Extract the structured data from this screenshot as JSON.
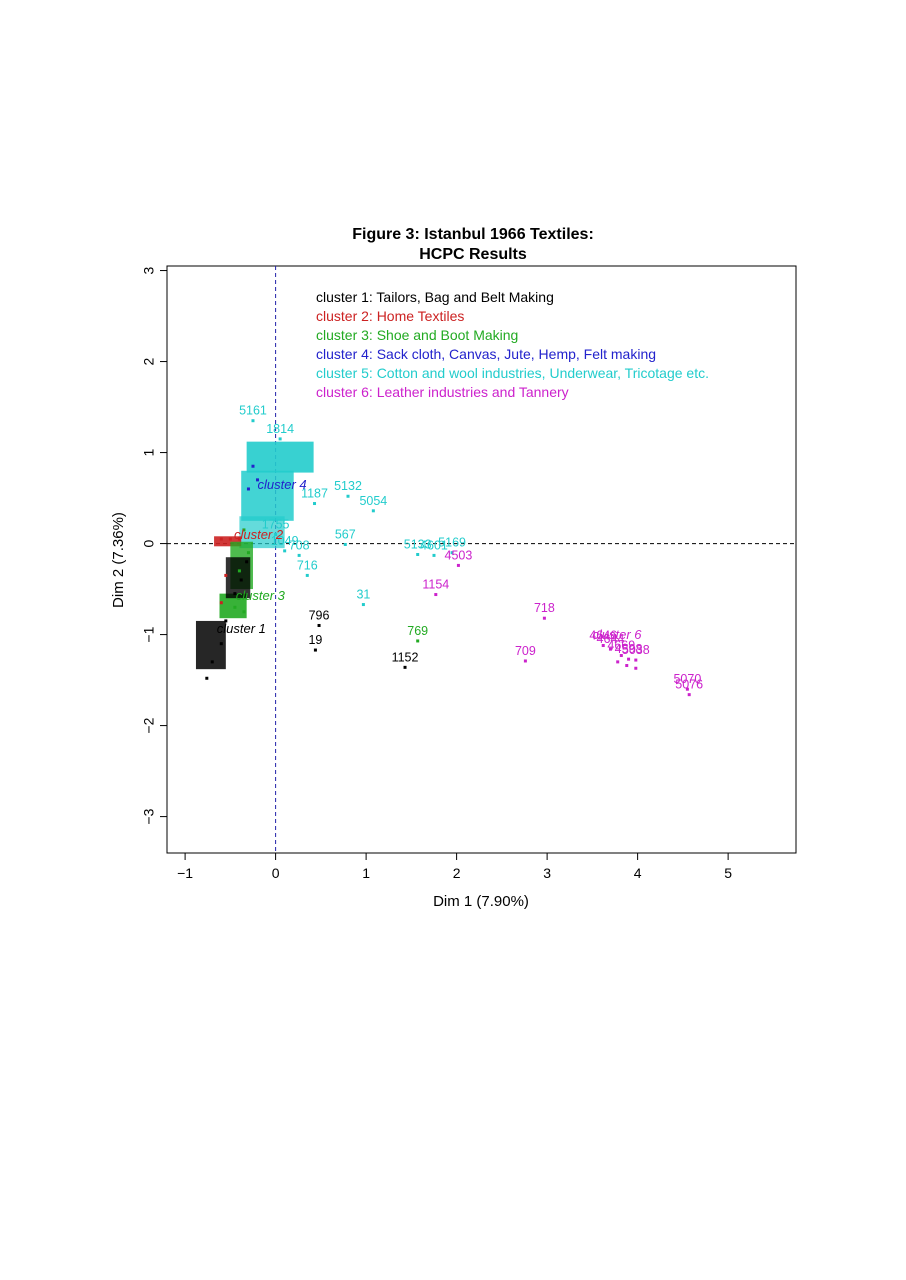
{
  "chart_data": {
    "type": "scatter",
    "title": [
      "Figure 3: Istanbul 1966 Textiles:",
      "HCPC Results"
    ],
    "xlabel": "Dim 1 (7.90%)",
    "ylabel": "Dim 2 (7.36%)",
    "xlim": [
      -1.2,
      5.75
    ],
    "ylim": [
      -3.4,
      3.05
    ],
    "xticks": [
      -1,
      0,
      1,
      2,
      3,
      4,
      5
    ],
    "yticks": [
      -3,
      -2,
      -1,
      0,
      1,
      2,
      3
    ],
    "xtick_labels": [
      "−1",
      "0",
      "1",
      "2",
      "3",
      "4",
      "5"
    ],
    "ytick_labels": [
      "−3",
      "−2",
      "−1",
      "0",
      "1",
      "2",
      "3"
    ],
    "grid": false,
    "reference_lines": {
      "x": 0,
      "y": 0
    },
    "legend_position": "top-left",
    "legend": [
      {
        "label": "cluster 1: Tailors, Bag and Belt Making",
        "color": "#000000"
      },
      {
        "label": "cluster 2: Home Textiles",
        "color": "#cc2222"
      },
      {
        "label": "cluster 3: Shoe and Boot Making",
        "color": "#22aa22"
      },
      {
        "label": "cluster 4: Sack cloth, Canvas, Jute, Hemp, Felt making",
        "color": "#2222cc"
      },
      {
        "label": "cluster 5: Cotton and wool industries, Underwear, Tricotage etc.",
        "color": "#22cccc"
      },
      {
        "label": "cluster 6: Leather industries and Tannery",
        "color": "#cc22cc"
      }
    ],
    "cluster_labels": [
      {
        "text": "cluster 1",
        "x": -0.65,
        "y": -0.98,
        "color": "#000000"
      },
      {
        "text": "cluster 2",
        "x": -0.46,
        "y": 0.05,
        "color": "#cc2222"
      },
      {
        "text": "cluster 3",
        "x": -0.44,
        "y": -0.62,
        "color": "#22aa22"
      },
      {
        "text": "cluster 4",
        "x": -0.2,
        "y": 0.6,
        "color": "#2222cc"
      },
      {
        "text": "cluster 6",
        "x": 3.5,
        "y": -1.05,
        "color": "#cc22cc"
      }
    ],
    "series": [
      {
        "cluster": 1,
        "color": "#000000",
        "points": [
          {
            "x": 0.48,
            "y": -0.9,
            "label": "796"
          },
          {
            "x": 0.44,
            "y": -1.17,
            "label": "19"
          },
          {
            "x": 1.43,
            "y": -1.36,
            "label": "1152"
          },
          {
            "x": -0.76,
            "y": -1.48,
            "label": ""
          },
          {
            "x": -0.7,
            "y": -1.3,
            "label": ""
          },
          {
            "x": -0.6,
            "y": -1.1,
            "label": ""
          },
          {
            "x": -0.55,
            "y": -0.85,
            "label": ""
          },
          {
            "x": -0.45,
            "y": -0.55,
            "label": ""
          },
          {
            "x": -0.38,
            "y": -0.4,
            "label": ""
          },
          {
            "x": -0.32,
            "y": -0.2,
            "label": ""
          }
        ]
      },
      {
        "cluster": 2,
        "color": "#cc2222",
        "points": [
          {
            "x": -0.5,
            "y": 0.05,
            "label": ""
          },
          {
            "x": -0.6,
            "y": 0.05,
            "label": ""
          },
          {
            "x": -0.4,
            "y": 0.05,
            "label": ""
          },
          {
            "x": -0.55,
            "y": -0.35,
            "label": ""
          },
          {
            "x": -0.6,
            "y": -0.65,
            "label": ""
          }
        ]
      },
      {
        "cluster": 3,
        "color": "#22aa22",
        "points": [
          {
            "x": 1.57,
            "y": -1.07,
            "label": "769"
          },
          {
            "x": -0.35,
            "y": -0.75,
            "label": ""
          },
          {
            "x": -0.45,
            "y": -0.7,
            "label": ""
          },
          {
            "x": -0.4,
            "y": -0.3,
            "label": ""
          },
          {
            "x": -0.3,
            "y": -0.1,
            "label": ""
          },
          {
            "x": -0.35,
            "y": 0.15,
            "label": ""
          }
        ]
      },
      {
        "cluster": 4,
        "color": "#2222cc",
        "points": [
          {
            "x": -0.3,
            "y": 0.6,
            "label": ""
          },
          {
            "x": -0.25,
            "y": 0.85,
            "label": ""
          },
          {
            "x": -0.2,
            "y": 0.7,
            "label": ""
          }
        ]
      },
      {
        "cluster": 5,
        "color": "#22cccc",
        "points": [
          {
            "x": -0.25,
            "y": 1.35,
            "label": "5161"
          },
          {
            "x": 0.05,
            "y": 1.15,
            "label": "1814"
          },
          {
            "x": 0.43,
            "y": 0.44,
            "label": "1187"
          },
          {
            "x": 0.8,
            "y": 0.52,
            "label": "5132"
          },
          {
            "x": 1.08,
            "y": 0.36,
            "label": "5054"
          },
          {
            "x": 0.77,
            "y": -0.01,
            "label": "567"
          },
          {
            "x": 1.57,
            "y": -0.12,
            "label": "5133"
          },
          {
            "x": 1.75,
            "y": -0.13,
            "label": "4601"
          },
          {
            "x": 1.95,
            "y": -0.1,
            "label": "5169"
          },
          {
            "x": 0.26,
            "y": -0.13,
            "label": "708"
          },
          {
            "x": 0.35,
            "y": -0.35,
            "label": "716"
          },
          {
            "x": 0.97,
            "y": -0.67,
            "label": "31"
          },
          {
            "x": 0.1,
            "y": -0.08,
            "label": "1049"
          },
          {
            "x": 0.0,
            "y": 0.1,
            "label": "1755"
          }
        ]
      },
      {
        "cluster": 6,
        "color": "#cc22cc",
        "points": [
          {
            "x": 2.02,
            "y": -0.24,
            "label": "4503"
          },
          {
            "x": 1.77,
            "y": -0.56,
            "label": "1154"
          },
          {
            "x": 2.97,
            "y": -0.82,
            "label": "718"
          },
          {
            "x": 2.76,
            "y": -1.29,
            "label": "709"
          },
          {
            "x": 3.62,
            "y": -1.12,
            "label": "4646"
          },
          {
            "x": 3.7,
            "y": -1.16,
            "label": "4644"
          },
          {
            "x": 3.82,
            "y": -1.23,
            "label": "4669"
          },
          {
            "x": 3.9,
            "y": -1.27,
            "label": "4598"
          },
          {
            "x": 3.98,
            "y": -1.28,
            "label": "5038"
          },
          {
            "x": 3.78,
            "y": -1.3,
            "label": ""
          },
          {
            "x": 3.88,
            "y": -1.34,
            "label": ""
          },
          {
            "x": 3.98,
            "y": -1.37,
            "label": ""
          },
          {
            "x": 4.55,
            "y": -1.6,
            "label": "5070"
          },
          {
            "x": 4.57,
            "y": -1.66,
            "label": "5076"
          }
        ]
      }
    ]
  }
}
